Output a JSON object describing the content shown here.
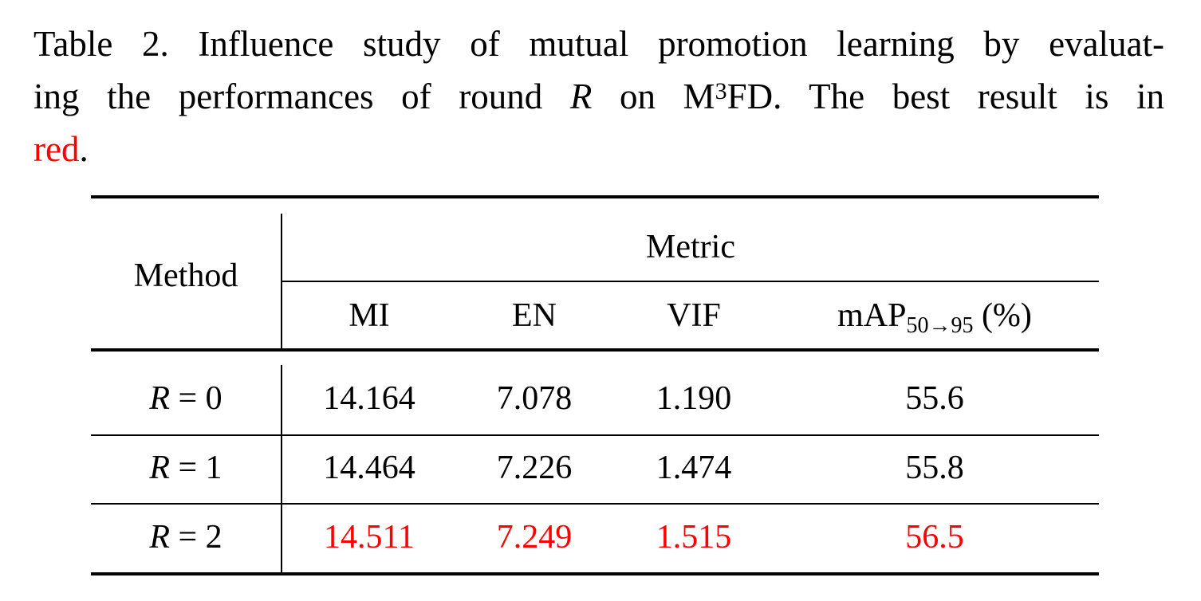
{
  "caption": {
    "line1": "Table 2. Influence study of mutual promotion learning by evaluat-",
    "line2_pre": "ing the performances of round",
    "line2_var": "R",
    "line2_on": "on M",
    "line2_sup": "3",
    "line2_post": "FD. The best result is in",
    "line3_red": "red",
    "line3_post": "."
  },
  "table": {
    "header": {
      "method": "Method",
      "metric": "Metric",
      "mi": "MI",
      "en": "EN",
      "vif": "VIF",
      "map_main": "mAP",
      "map_sub": "50→95",
      "map_unit": " (%)"
    },
    "rows": [
      {
        "var": "R",
        "eq": " = 0",
        "mi": "14.164",
        "en": "7.078",
        "vif": "1.190",
        "map": "55.6",
        "best": false
      },
      {
        "var": "R",
        "eq": " = 1",
        "mi": "14.464",
        "en": "7.226",
        "vif": "1.474",
        "map": "55.8",
        "best": false
      },
      {
        "var": "R",
        "eq": " = 2",
        "mi": "14.511",
        "en": "7.249",
        "vif": "1.515",
        "map": "56.5",
        "best": true
      }
    ],
    "highlight_color": "#ff0000"
  }
}
